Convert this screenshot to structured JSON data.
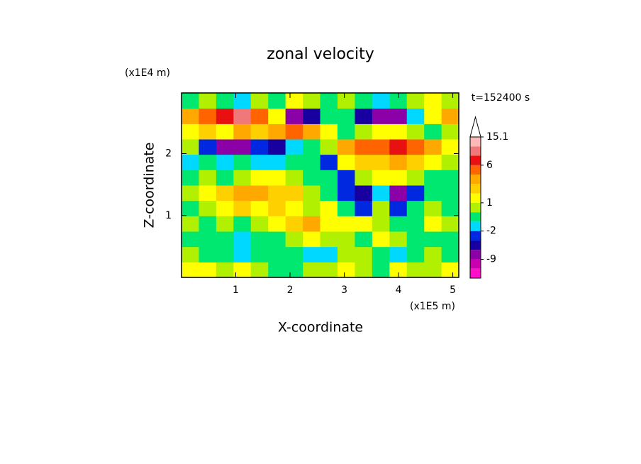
{
  "chart_data": {
    "type": "contour",
    "title": "zonal velocity",
    "x_label": "X-coordinate",
    "y_label": "Z-coordinate",
    "x_unit": "(x1E5 m)",
    "y_unit": "(x1E4 m)",
    "time_label": "t=152400 s",
    "xlim": [
      0,
      5.11
    ],
    "ylim": [
      0,
      2.98
    ],
    "xticks": [
      1,
      2,
      3,
      4,
      5
    ],
    "yticks": [
      1,
      2
    ],
    "x": [
      0.16,
      0.479,
      0.798,
      1.118,
      1.437,
      1.757,
      2.076,
      2.396,
      2.715,
      3.035,
      3.354,
      3.673,
      3.993,
      4.312,
      4.632,
      4.951
    ],
    "y": [
      0.124,
      0.372,
      0.621,
      0.869,
      1.118,
      1.366,
      1.614,
      1.863,
      2.111,
      2.359,
      2.607,
      2.856
    ],
    "z": [
      [
        1.5,
        1.5,
        0.5,
        1.5,
        0.5,
        -0.5,
        -0.5,
        0.5,
        0.5,
        1.5,
        0.5,
        -0.5,
        1.5,
        0.5,
        0.5,
        1.5
      ],
      [
        0.5,
        -0.5,
        -0.5,
        -1.5,
        -0.5,
        -0.5,
        -0.5,
        -1.5,
        -1.5,
        0.5,
        0.5,
        -0.5,
        -1.5,
        -0.5,
        0.5,
        -0.5
      ],
      [
        -0.5,
        -0.5,
        -0.5,
        -1.5,
        -0.5,
        -0.5,
        0.5,
        1.5,
        0.5,
        0.5,
        -0.5,
        1.5,
        0.5,
        -0.5,
        -0.5,
        -0.5
      ],
      [
        0.5,
        -0.5,
        0.5,
        -0.5,
        0.5,
        1.5,
        2.5,
        3.5,
        1.5,
        1.5,
        1.5,
        0.5,
        -0.5,
        -0.5,
        1.5,
        0.5
      ],
      [
        -0.5,
        0.5,
        1.5,
        2.5,
        1.5,
        2.5,
        1.5,
        0.5,
        1.5,
        -0.5,
        -3,
        0.5,
        -3,
        -0.5,
        0.5,
        -0.5
      ],
      [
        0.5,
        1.5,
        2.5,
        3.5,
        3.5,
        2.5,
        2.5,
        0.5,
        -0.5,
        -3,
        -5,
        -1.5,
        -7,
        -3,
        -0.5,
        -0.5
      ],
      [
        -0.5,
        0.5,
        -0.5,
        0.5,
        1.5,
        1.5,
        0.5,
        -0.5,
        -0.5,
        -3,
        0.5,
        1.5,
        1.5,
        0.5,
        -0.5,
        -0.5
      ],
      [
        -1.5,
        -0.5,
        -1.5,
        -0.5,
        -1.5,
        -1.5,
        -0.5,
        -0.5,
        -3,
        1.5,
        2.5,
        2.5,
        3.5,
        2.5,
        1.5,
        0.5
      ],
      [
        0.5,
        -3,
        -7,
        -7,
        -3,
        -5,
        -1.5,
        -0.5,
        0.5,
        3.5,
        5,
        5,
        7,
        5,
        3.5,
        1.5
      ],
      [
        1.5,
        2.5,
        1.5,
        3.5,
        2.5,
        3.5,
        5,
        3.5,
        1.5,
        -0.5,
        0.5,
        1.5,
        1.5,
        0.5,
        -0.5,
        0.5
      ],
      [
        3.5,
        5,
        7,
        10,
        5,
        1.5,
        -7,
        -5,
        -0.5,
        -0.5,
        -5,
        -7,
        -7,
        -1.5,
        1.5,
        3.5
      ],
      [
        -0.5,
        0.5,
        -0.5,
        -1.5,
        0.5,
        -0.5,
        1.5,
        0.5,
        -0.5,
        0.5,
        -0.5,
        -1.5,
        -0.5,
        0.5,
        1.5,
        0.5
      ]
    ],
    "levels": [
      -15,
      -12,
      -9,
      -6,
      -4,
      -2,
      -1,
      0,
      1,
      2,
      3,
      4,
      6,
      9,
      12,
      15.1
    ],
    "colors": [
      "#ff10c8",
      "#c800b0",
      "#8c00a8",
      "#1800a0",
      "#0028e0",
      "#00d8ff",
      "#00e870",
      "#b0f000",
      "#ffff00",
      "#ffd000",
      "#ffa800",
      "#ff6400",
      "#e81010",
      "#f07878",
      "#ffb8b8"
    ],
    "colorbar_ticks": [
      15.1,
      6,
      1,
      -2,
      -9
    ]
  }
}
